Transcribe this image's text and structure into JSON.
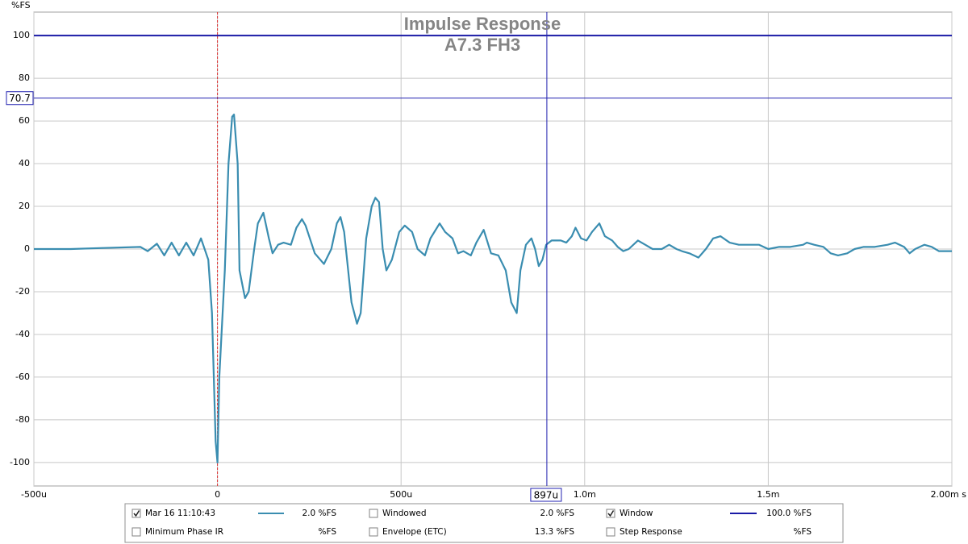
{
  "chart_data": {
    "type": "line",
    "title": "Impulse Response",
    "subtitle": "A7.3 FH3",
    "y_label": "%FS",
    "xlim": [
      -500,
      2000
    ],
    "xticks": [
      {
        "value": -500,
        "label": "-500u"
      },
      0,
      {
        "value": 500,
        "label": "500u"
      },
      {
        "value": 1000,
        "label": "1.0m"
      },
      {
        "value": 1500,
        "label": "1.5m"
      },
      {
        "value": 2000,
        "label": "2.00m s"
      }
    ],
    "ylim": [
      -111,
      111
    ],
    "yticks": [
      -100,
      -80,
      -60,
      -40,
      -20,
      0,
      20,
      40,
      60,
      80,
      100
    ],
    "grid": true,
    "reference_x": 0,
    "window_level": 100,
    "window_color": "#1a1aa6",
    "cursor_x": {
      "value": 897,
      "label": "897u"
    },
    "cursor_y": {
      "value": 70.7,
      "label": "70.7"
    },
    "cursor_color": "#2020b0",
    "series": [
      {
        "name": "Mar 16 11:10:43",
        "color": "#3a8db0",
        "x": [
          -500,
          -400,
          -310,
          -210,
          -190,
          -165,
          -145,
          -125,
          -105,
          -85,
          -65,
          -45,
          -25,
          -15,
          -5,
          0,
          5,
          20,
          30,
          40,
          45,
          55,
          60,
          75,
          85,
          100,
          110,
          125,
          140,
          150,
          165,
          180,
          200,
          215,
          230,
          240,
          265,
          290,
          310,
          325,
          335,
          345,
          365,
          380,
          390,
          405,
          420,
          430,
          440,
          450,
          460,
          475,
          495,
          510,
          530,
          545,
          565,
          580,
          605,
          620,
          640,
          655,
          670,
          690,
          705,
          725,
          745,
          765,
          785,
          800,
          815,
          825,
          840,
          855,
          865,
          875,
          885,
          895,
          910,
          935,
          950,
          965,
          975,
          990,
          1005,
          1020,
          1040,
          1055,
          1075,
          1090,
          1105,
          1120,
          1145,
          1165,
          1185,
          1210,
          1230,
          1250,
          1265,
          1285,
          1310,
          1330,
          1350,
          1370,
          1395,
          1420,
          1440,
          1475,
          1500,
          1530,
          1560,
          1595,
          1605,
          1625,
          1650,
          1670,
          1690,
          1715,
          1735,
          1760,
          1790,
          1825,
          1845,
          1870,
          1885,
          1900,
          1925,
          1945,
          1965,
          2000
        ],
        "values": [
          0,
          0,
          0.5,
          1,
          -1,
          2.5,
          -3,
          3,
          -3,
          3,
          -3,
          5,
          -5,
          -30,
          -90,
          -100,
          -60,
          -10,
          40,
          62,
          63,
          40,
          -10,
          -23,
          -20,
          0,
          12,
          17,
          5,
          -2,
          2,
          3,
          2,
          10,
          14,
          11,
          -2,
          -7,
          0,
          12,
          15,
          8,
          -25,
          -35,
          -30,
          5,
          20,
          24,
          22,
          0,
          -10,
          -5,
          8,
          11,
          8,
          0,
          -3,
          5,
          12,
          8,
          5,
          -2,
          -1,
          -3,
          3,
          9,
          -2,
          -3,
          -10,
          -25,
          -30,
          -10,
          2,
          5,
          0,
          -8,
          -5,
          2,
          4,
          4,
          3,
          6,
          10,
          5,
          4,
          8,
          12,
          6,
          4,
          1,
          -1,
          0,
          4,
          2,
          0,
          0,
          2,
          0,
          -1,
          -2,
          -4,
          0,
          5,
          6,
          3,
          2,
          2,
          2,
          0,
          1,
          1,
          2,
          3,
          2,
          1,
          -2,
          -3,
          -2,
          0,
          1,
          1,
          2,
          3,
          1,
          -2,
          0,
          2,
          1,
          -1,
          -1
        ]
      }
    ],
    "legend": [
      {
        "label": "Mar 16 11:10:43",
        "checked": true,
        "value_label": "2.0 %FS",
        "text_color": "#3a7fa6",
        "line_color": "#3a8db0"
      },
      {
        "label": "Windowed",
        "checked": false,
        "value_label": "2.0 %FS",
        "text_color": "#3aa6d8"
      },
      {
        "label": "Window",
        "checked": true,
        "value_label": "100.0 %FS",
        "text_color": "#1a1aa6",
        "line_color": "#1a1aa6"
      },
      {
        "label": "Minimum Phase IR",
        "checked": false,
        "value_label": "%FS",
        "text_color": "#a0a0a0"
      },
      {
        "label": "Envelope (ETC)",
        "checked": false,
        "value_label": "13.3 %FS",
        "text_color": "#000000"
      },
      {
        "label": "Step Response",
        "checked": false,
        "value_label": "%FS",
        "text_color": "#000000"
      }
    ]
  }
}
